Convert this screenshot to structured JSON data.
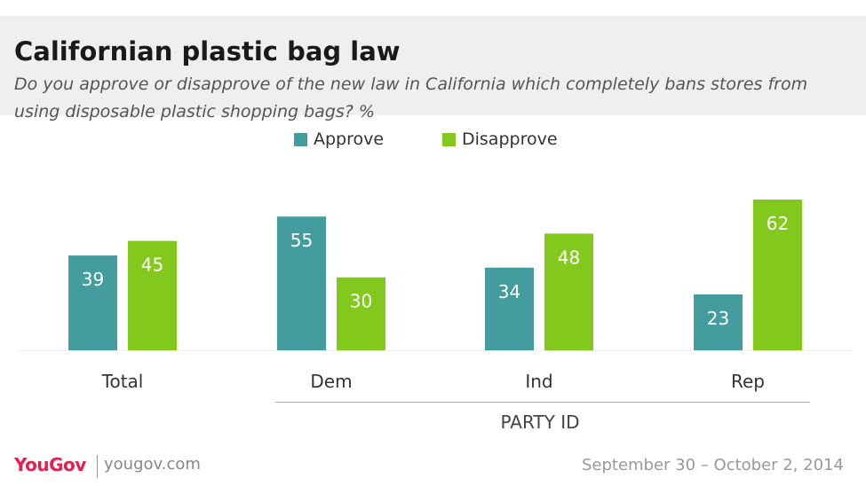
{
  "header": {
    "title": "Californian plastic bag law",
    "subtitle": "Do you approve or disapprove of the new law in California which completely bans stores from using disposable plastic shopping bags? %"
  },
  "legend": [
    {
      "label": "Approve",
      "color": "#459c9e"
    },
    {
      "label": "Disapprove",
      "color": "#83c91d"
    }
  ],
  "chart_data": {
    "type": "bar",
    "title": "Californian plastic bag law",
    "categories": [
      "Total",
      "Dem",
      "Ind",
      "Rep"
    ],
    "group_label": "PARTY ID",
    "grouped_categories": [
      "Dem",
      "Ind",
      "Rep"
    ],
    "series": [
      {
        "name": "Approve",
        "color": "#459c9e",
        "values": [
          39,
          55,
          34,
          23
        ]
      },
      {
        "name": "Disapprove",
        "color": "#83c91d",
        "values": [
          45,
          30,
          48,
          62
        ]
      }
    ],
    "ylim": [
      0,
      62
    ],
    "grid": false,
    "legend_position": "top"
  },
  "footer": {
    "logo": "YouGov",
    "url": "yougov.com",
    "date": "September 30 – October 2, 2014"
  }
}
